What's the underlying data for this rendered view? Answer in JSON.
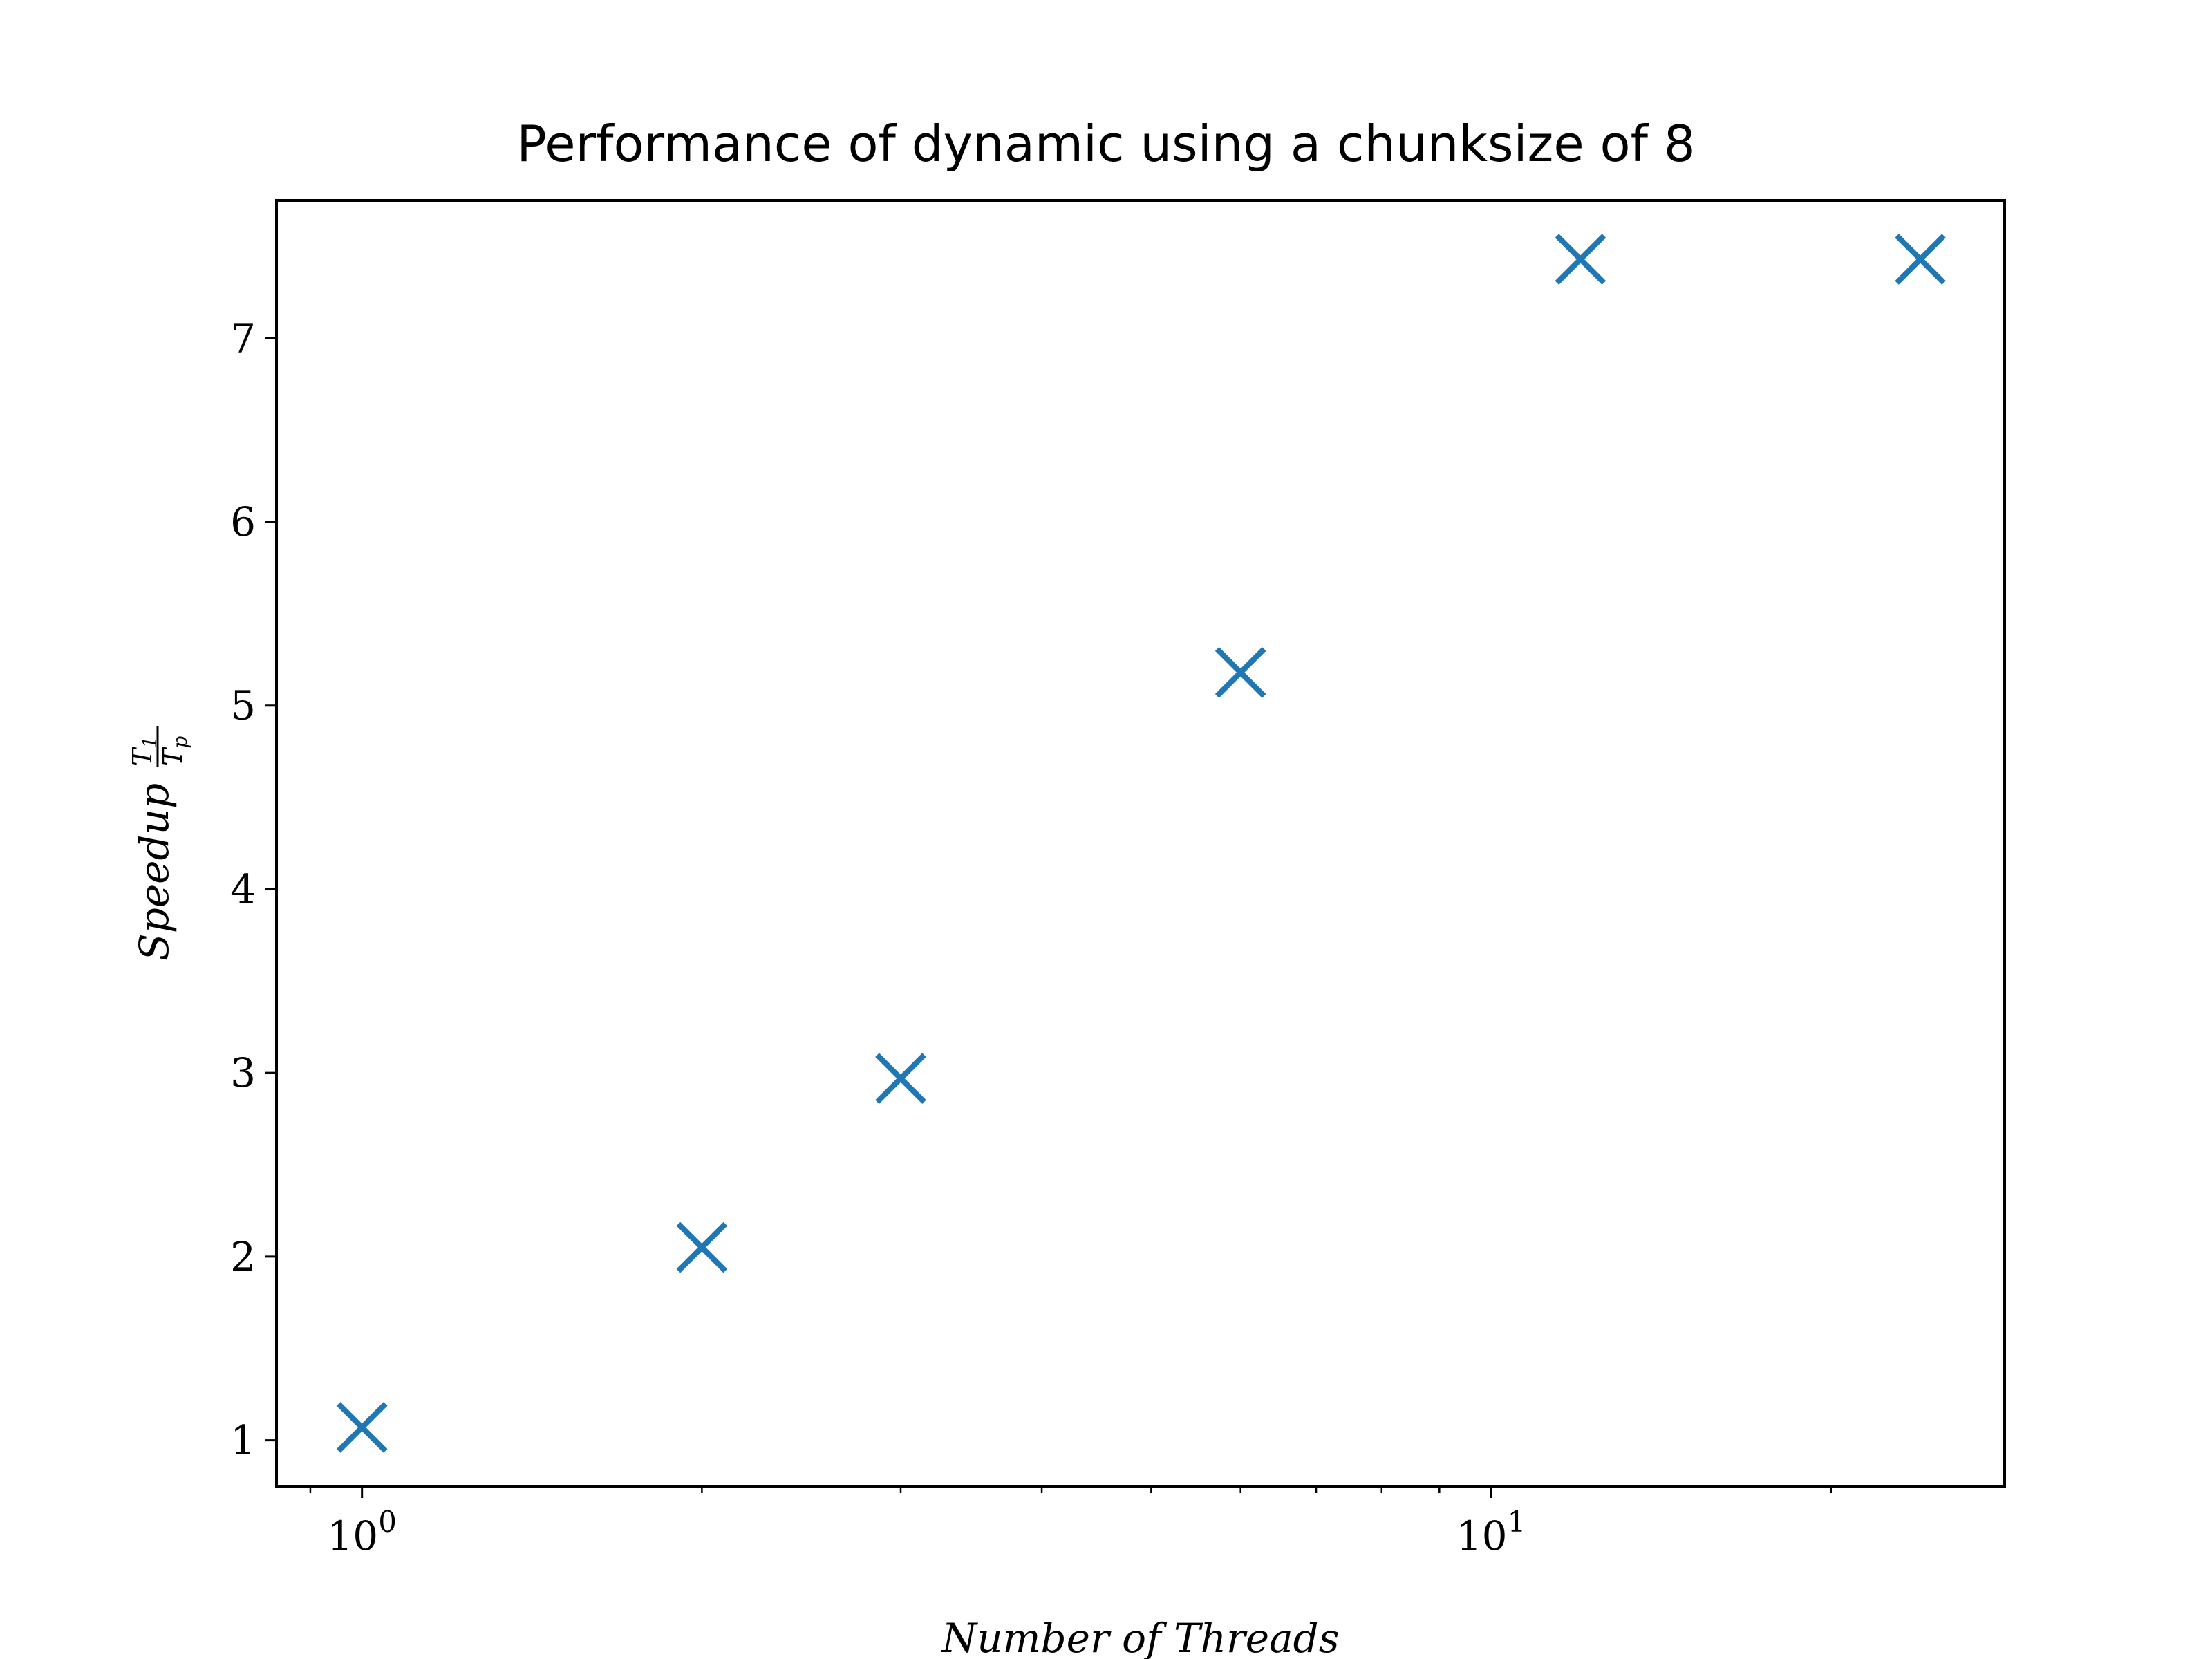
{
  "chart_data": {
    "type": "scatter",
    "title": "Performance of dynamic using a chunksize of 8",
    "xlabel": "Number of Threads",
    "ylabel": {
      "main": "Speedup",
      "numerator": "T",
      "numerator_sub": "1",
      "denominator": "T",
      "denominator_sub": "p"
    },
    "x_scale": "log",
    "xlim": [
      0.84,
      28.5
    ],
    "ylim": [
      0.75,
      7.75
    ],
    "x_ticks": [
      {
        "value": 1,
        "base": "10",
        "exp": "0"
      },
      {
        "value": 10,
        "base": "10",
        "exp": "1"
      }
    ],
    "x_minor_ticks": [
      0.9,
      2,
      3,
      4,
      5,
      6,
      7,
      8,
      9,
      20
    ],
    "y_ticks": [
      1,
      2,
      3,
      4,
      5,
      6,
      7
    ],
    "grid": false,
    "marker": "x",
    "color": "#1f77b4",
    "series": [
      {
        "x": [
          1,
          2,
          3,
          6,
          12,
          24
        ],
        "y": [
          1.07,
          2.05,
          2.97,
          5.18,
          7.43,
          7.43
        ]
      }
    ]
  }
}
